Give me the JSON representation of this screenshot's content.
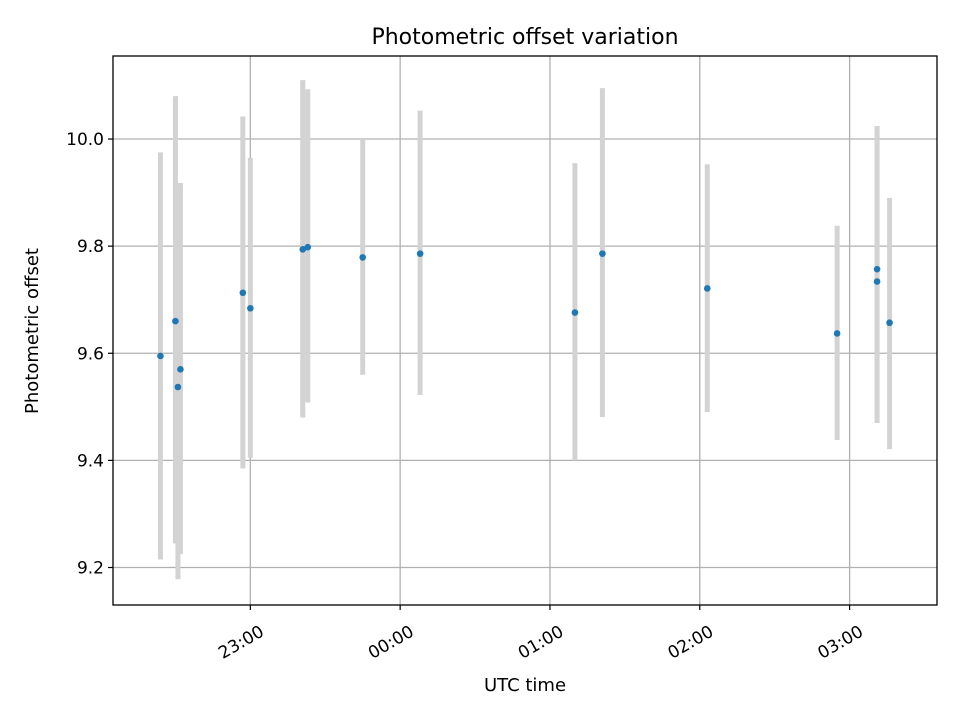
{
  "chart_data": {
    "type": "scatter",
    "title": "Photometric offset variation",
    "xlabel": "UTC time",
    "ylabel": "Photometric offset",
    "x_ticks": [
      "23:00",
      "00:00",
      "01:00",
      "02:00",
      "03:00"
    ],
    "y_ticks": [
      9.2,
      9.4,
      9.6,
      9.8,
      10.0
    ],
    "xlim": [
      "22:05",
      "03:35"
    ],
    "ylim": [
      9.13,
      10.155
    ],
    "grid": true,
    "colors": {
      "marker": "#1f77b4",
      "errorbar": "#d3d3d3"
    },
    "points": [
      {
        "x": "22:24",
        "y": 9.595,
        "ylow": 9.215,
        "yhigh": 9.975
      },
      {
        "x": "22:30",
        "y": 9.66,
        "ylow": 9.245,
        "yhigh": 10.08
      },
      {
        "x": "22:31",
        "y": 9.537,
        "ylow": 9.178,
        "yhigh": 9.895
      },
      {
        "x": "22:32",
        "y": 9.57,
        "ylow": 9.225,
        "yhigh": 9.918
      },
      {
        "x": "22:57",
        "y": 9.713,
        "ylow": 9.385,
        "yhigh": 10.042
      },
      {
        "x": "23:00",
        "y": 9.684,
        "ylow": 9.405,
        "yhigh": 9.965
      },
      {
        "x": "23:21",
        "y": 9.794,
        "ylow": 9.48,
        "yhigh": 10.11
      },
      {
        "x": "23:23",
        "y": 9.798,
        "ylow": 9.508,
        "yhigh": 10.093
      },
      {
        "x": "23:45",
        "y": 9.779,
        "ylow": 9.56,
        "yhigh": 10.0
      },
      {
        "x": "00:08",
        "y": 9.786,
        "ylow": 9.522,
        "yhigh": 10.053
      },
      {
        "x": "01:10",
        "y": 9.676,
        "ylow": 9.4,
        "yhigh": 9.955
      },
      {
        "x": "01:21",
        "y": 9.786,
        "ylow": 9.481,
        "yhigh": 10.095
      },
      {
        "x": "02:03",
        "y": 9.721,
        "ylow": 9.49,
        "yhigh": 9.953
      },
      {
        "x": "02:55",
        "y": 9.637,
        "ylow": 9.438,
        "yhigh": 9.838
      },
      {
        "x": "03:11",
        "y": 9.734,
        "ylow": 9.47,
        "yhigh": 10.024
      },
      {
        "x": "03:11",
        "y": 9.757,
        "ylow": 9.47,
        "yhigh": 10.024
      },
      {
        "x": "03:16",
        "y": 9.657,
        "ylow": 9.421,
        "yhigh": 9.89
      }
    ]
  }
}
